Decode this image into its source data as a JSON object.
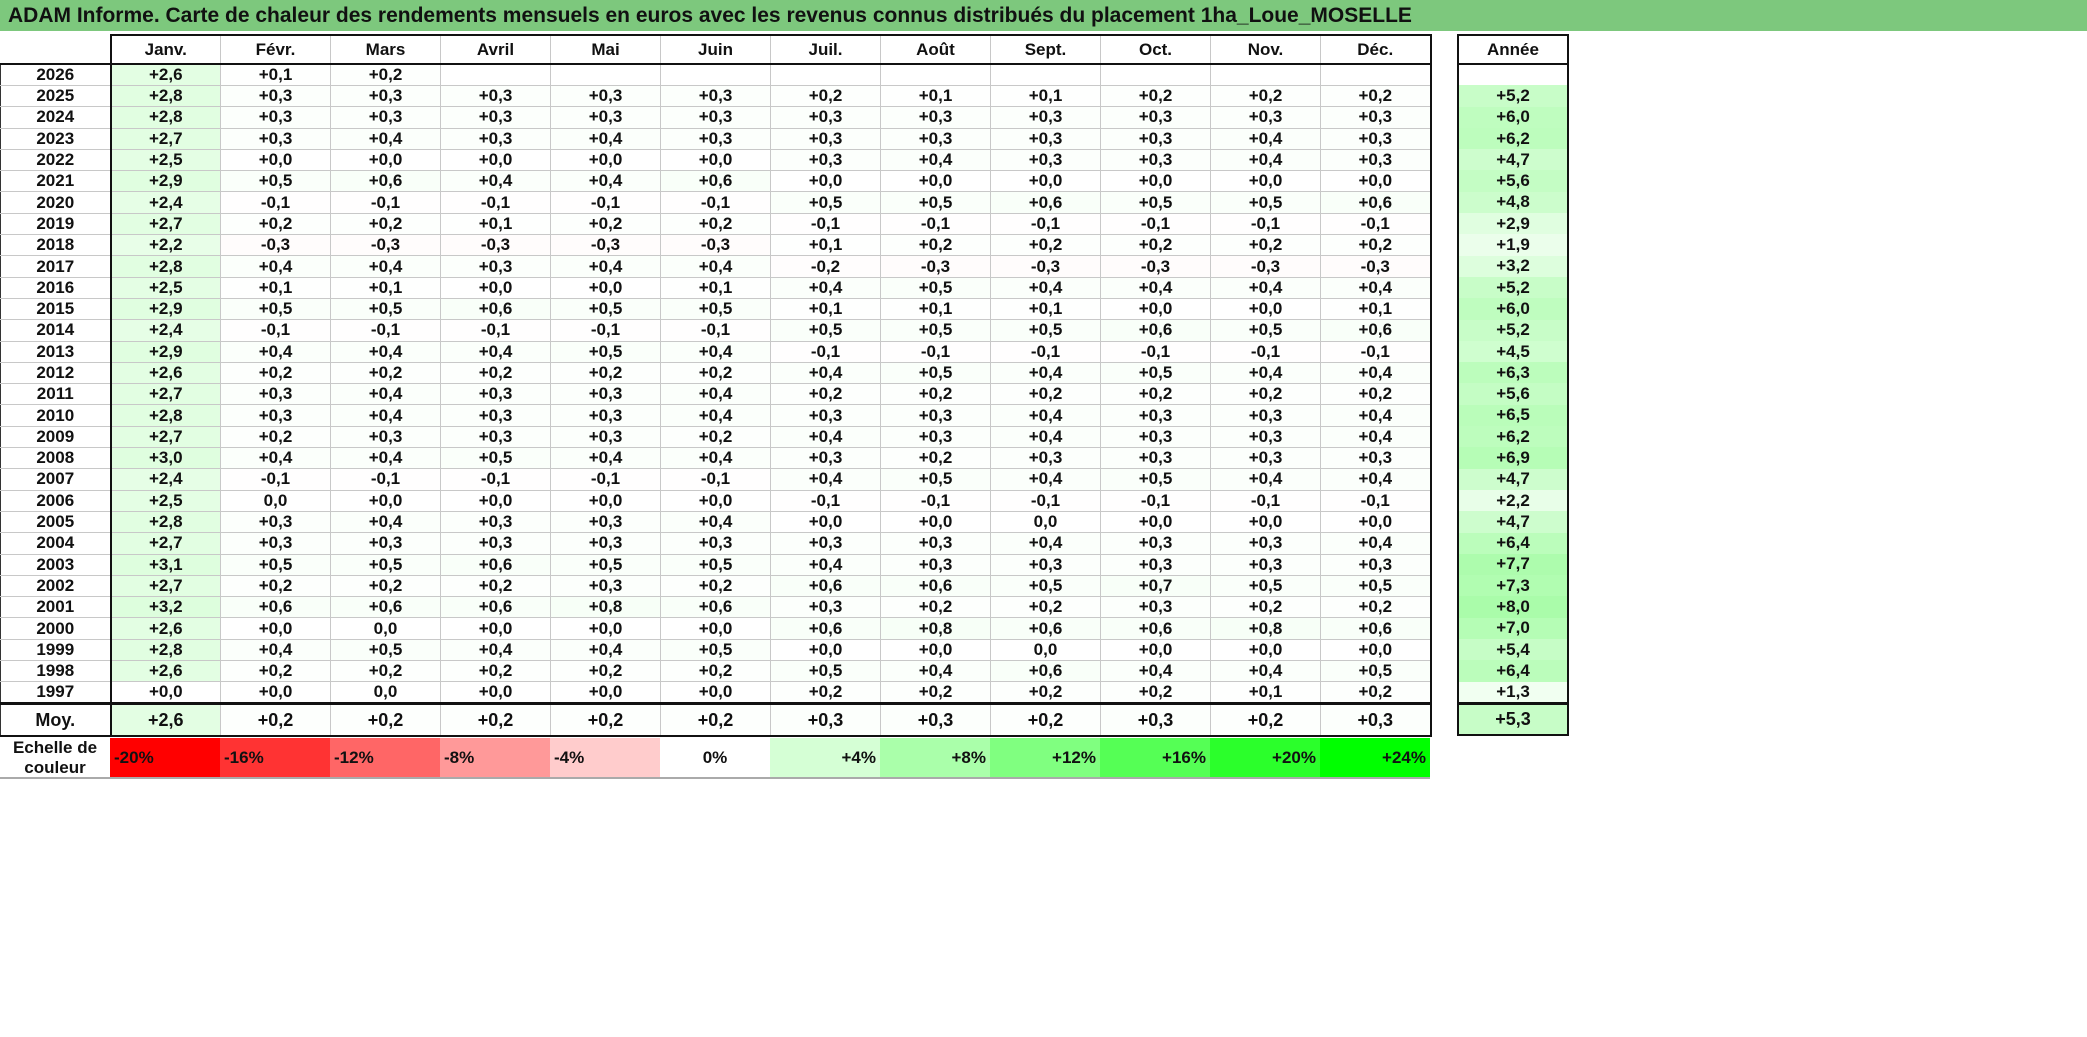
{
  "title": "ADAM Informe. Carte de chaleur des rendements mensuels en euros avec les revenus connus distribués du placement 1ha_Loue_MOSELLE",
  "chart_data": {
    "type": "heatmap",
    "title": "ADAM Informe. Carte de chaleur des rendements mensuels en euros avec les revenus connus distribués du placement 1ha_Loue_MOSELLE",
    "columns": [
      "Janv.",
      "Févr.",
      "Mars",
      "Avril",
      "Mai",
      "Juin",
      "Juil.",
      "Août",
      "Sept.",
      "Oct.",
      "Nov.",
      "Déc."
    ],
    "year_header": "Année",
    "rows": [
      {
        "year": "2026",
        "values": [
          "+2,6",
          "+0,1",
          "+0,2",
          "",
          "",
          "",
          "",
          "",
          "",
          "",
          "",
          ""
        ],
        "annee": ""
      },
      {
        "year": "2025",
        "values": [
          "+2,8",
          "+0,3",
          "+0,3",
          "+0,3",
          "+0,3",
          "+0,3",
          "+0,2",
          "+0,1",
          "+0,1",
          "+0,2",
          "+0,2",
          "+0,2"
        ],
        "annee": "+5,2"
      },
      {
        "year": "2024",
        "values": [
          "+2,8",
          "+0,3",
          "+0,3",
          "+0,3",
          "+0,3",
          "+0,3",
          "+0,3",
          "+0,3",
          "+0,3",
          "+0,3",
          "+0,3",
          "+0,3"
        ],
        "annee": "+6,0"
      },
      {
        "year": "2023",
        "values": [
          "+2,7",
          "+0,3",
          "+0,4",
          "+0,3",
          "+0,4",
          "+0,3",
          "+0,3",
          "+0,3",
          "+0,3",
          "+0,3",
          "+0,4",
          "+0,3"
        ],
        "annee": "+6,2"
      },
      {
        "year": "2022",
        "values": [
          "+2,5",
          "+0,0",
          "+0,0",
          "+0,0",
          "+0,0",
          "+0,0",
          "+0,3",
          "+0,4",
          "+0,3",
          "+0,3",
          "+0,4",
          "+0,3"
        ],
        "annee": "+4,7"
      },
      {
        "year": "2021",
        "values": [
          "+2,9",
          "+0,5",
          "+0,6",
          "+0,4",
          "+0,4",
          "+0,6",
          "+0,0",
          "+0,0",
          "+0,0",
          "+0,0",
          "+0,0",
          "+0,0"
        ],
        "annee": "+5,6"
      },
      {
        "year": "2020",
        "values": [
          "+2,4",
          "-0,1",
          "-0,1",
          "-0,1",
          "-0,1",
          "-0,1",
          "+0,5",
          "+0,5",
          "+0,6",
          "+0,5",
          "+0,5",
          "+0,6"
        ],
        "annee": "+4,8"
      },
      {
        "year": "2019",
        "values": [
          "+2,7",
          "+0,2",
          "+0,2",
          "+0,1",
          "+0,2",
          "+0,2",
          "-0,1",
          "-0,1",
          "-0,1",
          "-0,1",
          "-0,1",
          "-0,1"
        ],
        "annee": "+2,9"
      },
      {
        "year": "2018",
        "values": [
          "+2,2",
          "-0,3",
          "-0,3",
          "-0,3",
          "-0,3",
          "-0,3",
          "+0,1",
          "+0,2",
          "+0,2",
          "+0,2",
          "+0,2",
          "+0,2"
        ],
        "annee": "+1,9"
      },
      {
        "year": "2017",
        "values": [
          "+2,8",
          "+0,4",
          "+0,4",
          "+0,3",
          "+0,4",
          "+0,4",
          "-0,2",
          "-0,3",
          "-0,3",
          "-0,3",
          "-0,3",
          "-0,3"
        ],
        "annee": "+3,2"
      },
      {
        "year": "2016",
        "values": [
          "+2,5",
          "+0,1",
          "+0,1",
          "+0,0",
          "+0,0",
          "+0,1",
          "+0,4",
          "+0,5",
          "+0,4",
          "+0,4",
          "+0,4",
          "+0,4"
        ],
        "annee": "+5,2"
      },
      {
        "year": "2015",
        "values": [
          "+2,9",
          "+0,5",
          "+0,5",
          "+0,6",
          "+0,5",
          "+0,5",
          "+0,1",
          "+0,1",
          "+0,1",
          "+0,0",
          "+0,0",
          "+0,1"
        ],
        "annee": "+6,0"
      },
      {
        "year": "2014",
        "values": [
          "+2,4",
          "-0,1",
          "-0,1",
          "-0,1",
          "-0,1",
          "-0,1",
          "+0,5",
          "+0,5",
          "+0,5",
          "+0,6",
          "+0,5",
          "+0,6"
        ],
        "annee": "+5,2"
      },
      {
        "year": "2013",
        "values": [
          "+2,9",
          "+0,4",
          "+0,4",
          "+0,4",
          "+0,5",
          "+0,4",
          "-0,1",
          "-0,1",
          "-0,1",
          "-0,1",
          "-0,1",
          "-0,1"
        ],
        "annee": "+4,5"
      },
      {
        "year": "2012",
        "values": [
          "+2,6",
          "+0,2",
          "+0,2",
          "+0,2",
          "+0,2",
          "+0,2",
          "+0,4",
          "+0,5",
          "+0,4",
          "+0,5",
          "+0,4",
          "+0,4"
        ],
        "annee": "+6,3"
      },
      {
        "year": "2011",
        "values": [
          "+2,7",
          "+0,3",
          "+0,4",
          "+0,3",
          "+0,3",
          "+0,4",
          "+0,2",
          "+0,2",
          "+0,2",
          "+0,2",
          "+0,2",
          "+0,2"
        ],
        "annee": "+5,6"
      },
      {
        "year": "2010",
        "values": [
          "+2,8",
          "+0,3",
          "+0,4",
          "+0,3",
          "+0,3",
          "+0,4",
          "+0,3",
          "+0,3",
          "+0,4",
          "+0,3",
          "+0,3",
          "+0,4"
        ],
        "annee": "+6,5"
      },
      {
        "year": "2009",
        "values": [
          "+2,7",
          "+0,2",
          "+0,3",
          "+0,3",
          "+0,3",
          "+0,2",
          "+0,4",
          "+0,3",
          "+0,4",
          "+0,3",
          "+0,3",
          "+0,4"
        ],
        "annee": "+6,2"
      },
      {
        "year": "2008",
        "values": [
          "+3,0",
          "+0,4",
          "+0,4",
          "+0,5",
          "+0,4",
          "+0,4",
          "+0,3",
          "+0,2",
          "+0,3",
          "+0,3",
          "+0,3",
          "+0,3"
        ],
        "annee": "+6,9"
      },
      {
        "year": "2007",
        "values": [
          "+2,4",
          "-0,1",
          "-0,1",
          "-0,1",
          "-0,1",
          "-0,1",
          "+0,4",
          "+0,5",
          "+0,4",
          "+0,5",
          "+0,4",
          "+0,4"
        ],
        "annee": "+4,7"
      },
      {
        "year": "2006",
        "values": [
          "+2,5",
          "0,0",
          "+0,0",
          "+0,0",
          "+0,0",
          "+0,0",
          "-0,1",
          "-0,1",
          "-0,1",
          "-0,1",
          "-0,1",
          "-0,1"
        ],
        "annee": "+2,2"
      },
      {
        "year": "2005",
        "values": [
          "+2,8",
          "+0,3",
          "+0,4",
          "+0,3",
          "+0,3",
          "+0,4",
          "+0,0",
          "+0,0",
          "0,0",
          "+0,0",
          "+0,0",
          "+0,0"
        ],
        "annee": "+4,7"
      },
      {
        "year": "2004",
        "values": [
          "+2,7",
          "+0,3",
          "+0,3",
          "+0,3",
          "+0,3",
          "+0,3",
          "+0,3",
          "+0,3",
          "+0,4",
          "+0,3",
          "+0,3",
          "+0,4"
        ],
        "annee": "+6,4"
      },
      {
        "year": "2003",
        "values": [
          "+3,1",
          "+0,5",
          "+0,5",
          "+0,6",
          "+0,5",
          "+0,5",
          "+0,4",
          "+0,3",
          "+0,3",
          "+0,3",
          "+0,3",
          "+0,3"
        ],
        "annee": "+7,7"
      },
      {
        "year": "2002",
        "values": [
          "+2,7",
          "+0,2",
          "+0,2",
          "+0,2",
          "+0,3",
          "+0,2",
          "+0,6",
          "+0,6",
          "+0,5",
          "+0,7",
          "+0,5",
          "+0,5"
        ],
        "annee": "+7,3"
      },
      {
        "year": "2001",
        "values": [
          "+3,2",
          "+0,6",
          "+0,6",
          "+0,6",
          "+0,8",
          "+0,6",
          "+0,3",
          "+0,2",
          "+0,2",
          "+0,3",
          "+0,2",
          "+0,2"
        ],
        "annee": "+8,0"
      },
      {
        "year": "2000",
        "values": [
          "+2,6",
          "+0,0",
          "0,0",
          "+0,0",
          "+0,0",
          "+0,0",
          "+0,6",
          "+0,8",
          "+0,6",
          "+0,6",
          "+0,8",
          "+0,6"
        ],
        "annee": "+7,0"
      },
      {
        "year": "1999",
        "values": [
          "+2,8",
          "+0,4",
          "+0,5",
          "+0,4",
          "+0,4",
          "+0,5",
          "+0,0",
          "+0,0",
          "0,0",
          "+0,0",
          "+0,0",
          "+0,0"
        ],
        "annee": "+5,4"
      },
      {
        "year": "1998",
        "values": [
          "+2,6",
          "+0,2",
          "+0,2",
          "+0,2",
          "+0,2",
          "+0,2",
          "+0,5",
          "+0,4",
          "+0,6",
          "+0,4",
          "+0,4",
          "+0,5"
        ],
        "annee": "+6,4"
      },
      {
        "year": "1997",
        "values": [
          "+0,0",
          "+0,0",
          "0,0",
          "+0,0",
          "+0,0",
          "+0,0",
          "+0,2",
          "+0,2",
          "+0,2",
          "+0,2",
          "+0,1",
          "+0,2"
        ],
        "annee": "+1,3"
      }
    ],
    "average": {
      "label": "Moy.",
      "values": [
        "+2,6",
        "+0,2",
        "+0,2",
        "+0,2",
        "+0,2",
        "+0,2",
        "+0,3",
        "+0,3",
        "+0,2",
        "+0,3",
        "+0,2",
        "+0,3"
      ],
      "annee": "+5,3"
    },
    "color_scale": {
      "label_line1": "Echelle de",
      "label_line2": "couleur",
      "steps": [
        {
          "label": "-20%",
          "color": "#ff0000"
        },
        {
          "label": "-16%",
          "color": "#ff3333"
        },
        {
          "label": "-12%",
          "color": "#ff6666"
        },
        {
          "label": "-8%",
          "color": "#ff9999"
        },
        {
          "label": "-4%",
          "color": "#ffcccc"
        },
        {
          "label": "0%",
          "color": "#ffffff"
        },
        {
          "label": "+4%",
          "color": "#d5ffd5"
        },
        {
          "label": "+8%",
          "color": "#aaffaa"
        },
        {
          "label": "+12%",
          "color": "#80ff80"
        },
        {
          "label": "+16%",
          "color": "#55ff55"
        },
        {
          "label": "+20%",
          "color": "#2bff2b"
        },
        {
          "label": "+24%",
          "color": "#00ff00"
        }
      ]
    },
    "title_bar_color": "#7dc87d"
  }
}
